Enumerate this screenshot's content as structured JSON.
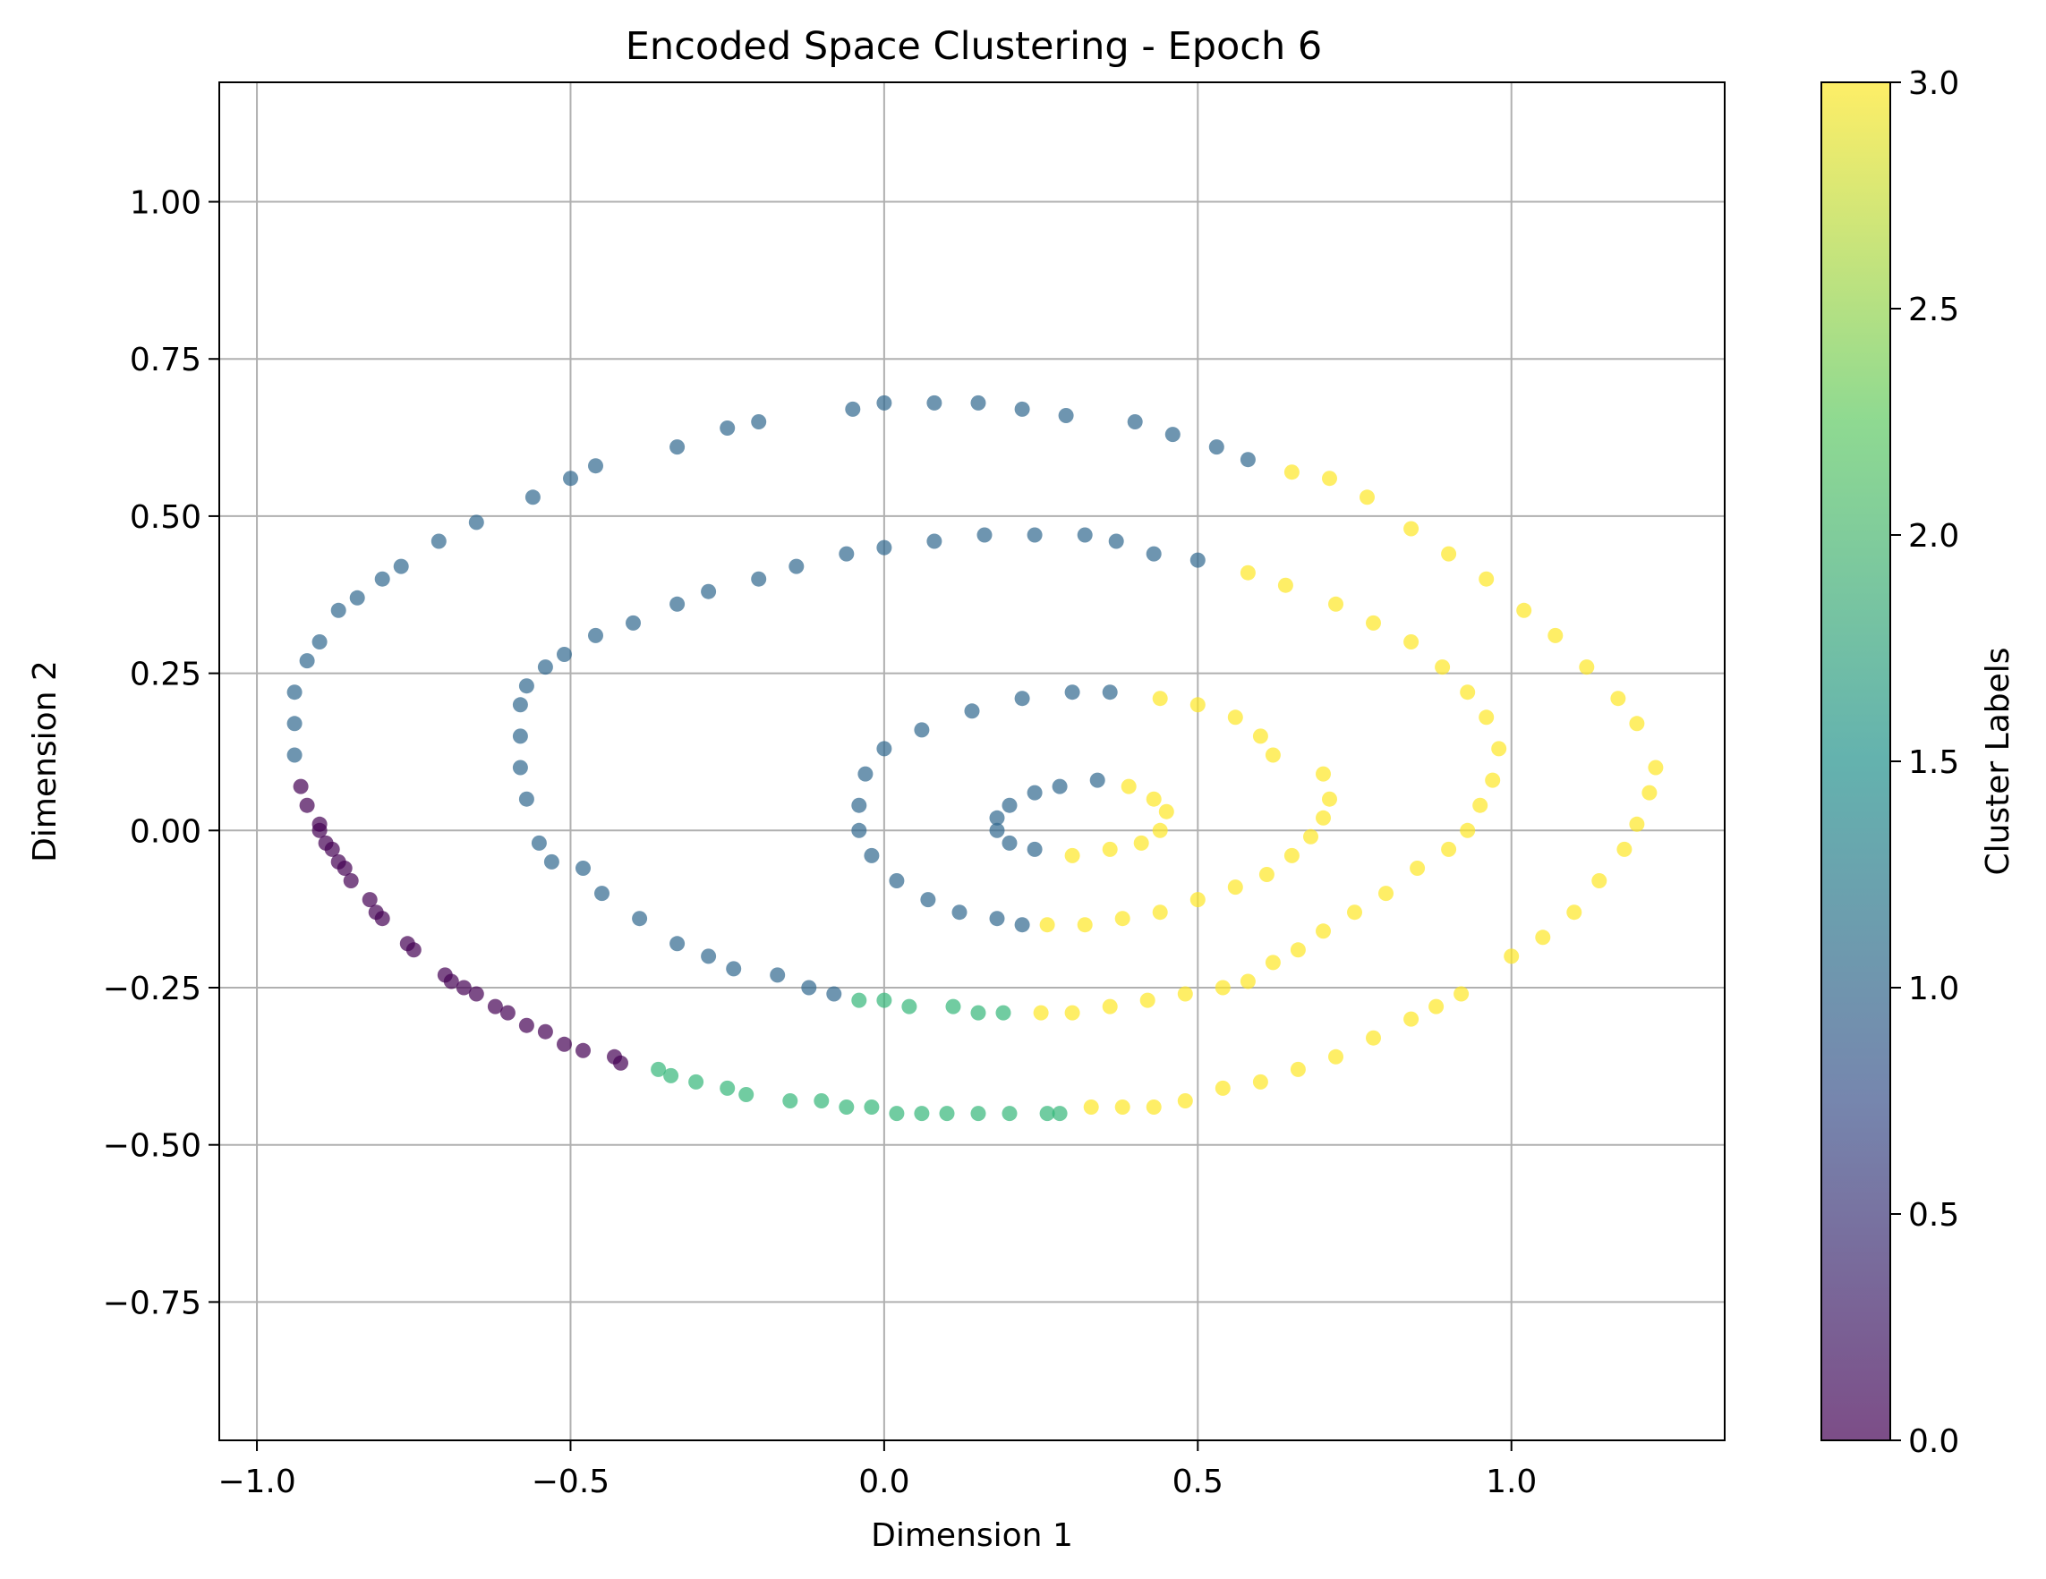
{
  "chart_data": {
    "type": "scatter",
    "title": "Encoded Space Clustering - Epoch 6",
    "xlabel": "Dimension 1",
    "ylabel": "Dimension 2",
    "xlim": [
      -1.06,
      1.34
    ],
    "ylim": [
      -0.97,
      1.19
    ],
    "xticks": [
      -1.0,
      -0.5,
      0.0,
      0.5,
      1.0
    ],
    "xtick_labels": [
      "−1.0",
      "−0.5",
      "0.0",
      "0.5",
      "1.0"
    ],
    "yticks": [
      -0.75,
      -0.5,
      -0.25,
      0.0,
      0.25,
      0.5,
      0.75,
      1.0
    ],
    "ytick_labels": [
      "−0.75",
      "−0.50",
      "−0.25",
      "0.00",
      "0.25",
      "0.50",
      "0.75",
      "1.00"
    ],
    "grid": true,
    "colorbar": {
      "label": "Cluster Labels",
      "range": [
        0.0,
        3.0
      ],
      "ticks": [
        0.0,
        0.5,
        1.0,
        1.5,
        2.0,
        2.5,
        3.0
      ],
      "tick_labels": [
        "0.0",
        "0.5",
        "1.0",
        "1.5",
        "2.0",
        "2.5",
        "3.0"
      ],
      "colormap": "viridis",
      "colormap_stops": [
        "#440154",
        "#3b528b",
        "#21918c",
        "#5ec962",
        "#fde725"
      ]
    },
    "cluster_colors": {
      "0": "#440154",
      "1": "#31688e",
      "2": "#35b779",
      "3": "#fde725"
    },
    "point_alpha": 0.7,
    "points": [
      {
        "cluster": 1,
        "x": -0.94,
        "y": 0.22
      },
      {
        "cluster": 1,
        "x": -0.94,
        "y": 0.17
      },
      {
        "cluster": 1,
        "x": -0.94,
        "y": 0.12
      },
      {
        "cluster": 0,
        "x": -0.93,
        "y": 0.07
      },
      {
        "cluster": 0,
        "x": -0.92,
        "y": 0.04
      },
      {
        "cluster": 0,
        "x": -0.9,
        "y": 0.01
      },
      {
        "cluster": 0,
        "x": -0.9,
        "y": 0.0
      },
      {
        "cluster": 0,
        "x": -0.89,
        "y": -0.02
      },
      {
        "cluster": 0,
        "x": -0.88,
        "y": -0.03
      },
      {
        "cluster": 0,
        "x": -0.87,
        "y": -0.05
      },
      {
        "cluster": 0,
        "x": -0.86,
        "y": -0.06
      },
      {
        "cluster": 0,
        "x": -0.85,
        "y": -0.08
      },
      {
        "cluster": 0,
        "x": -0.82,
        "y": -0.11
      },
      {
        "cluster": 0,
        "x": -0.81,
        "y": -0.13
      },
      {
        "cluster": 0,
        "x": -0.8,
        "y": -0.14
      },
      {
        "cluster": 0,
        "x": -0.76,
        "y": -0.18
      },
      {
        "cluster": 0,
        "x": -0.75,
        "y": -0.19
      },
      {
        "cluster": 0,
        "x": -0.7,
        "y": -0.23
      },
      {
        "cluster": 0,
        "x": -0.69,
        "y": -0.24
      },
      {
        "cluster": 0,
        "x": -0.67,
        "y": -0.25
      },
      {
        "cluster": 0,
        "x": -0.65,
        "y": -0.26
      },
      {
        "cluster": 0,
        "x": -0.62,
        "y": -0.28
      },
      {
        "cluster": 0,
        "x": -0.6,
        "y": -0.29
      },
      {
        "cluster": 0,
        "x": -0.57,
        "y": -0.31
      },
      {
        "cluster": 0,
        "x": -0.54,
        "y": -0.32
      },
      {
        "cluster": 0,
        "x": -0.51,
        "y": -0.34
      },
      {
        "cluster": 0,
        "x": -0.48,
        "y": -0.35
      },
      {
        "cluster": 0,
        "x": -0.43,
        "y": -0.36
      },
      {
        "cluster": 0,
        "x": -0.42,
        "y": -0.37
      },
      {
        "cluster": 2,
        "x": -0.36,
        "y": -0.38
      },
      {
        "cluster": 2,
        "x": -0.34,
        "y": -0.39
      },
      {
        "cluster": 2,
        "x": -0.3,
        "y": -0.4
      },
      {
        "cluster": 2,
        "x": -0.25,
        "y": -0.41
      },
      {
        "cluster": 2,
        "x": -0.22,
        "y": -0.42
      },
      {
        "cluster": 2,
        "x": -0.15,
        "y": -0.43
      },
      {
        "cluster": 2,
        "x": -0.1,
        "y": -0.43
      },
      {
        "cluster": 2,
        "x": -0.06,
        "y": -0.44
      },
      {
        "cluster": 2,
        "x": -0.02,
        "y": -0.44
      },
      {
        "cluster": 2,
        "x": 0.02,
        "y": -0.45
      },
      {
        "cluster": 2,
        "x": 0.06,
        "y": -0.45
      },
      {
        "cluster": 2,
        "x": 0.1,
        "y": -0.45
      },
      {
        "cluster": 2,
        "x": 0.15,
        "y": -0.45
      },
      {
        "cluster": 2,
        "x": 0.2,
        "y": -0.45
      },
      {
        "cluster": 2,
        "x": 0.26,
        "y": -0.45
      },
      {
        "cluster": 2,
        "x": 0.28,
        "y": -0.45
      },
      {
        "cluster": 3,
        "x": 0.33,
        "y": -0.44
      },
      {
        "cluster": 3,
        "x": 0.38,
        "y": -0.44
      },
      {
        "cluster": 3,
        "x": 0.43,
        "y": -0.44
      },
      {
        "cluster": 3,
        "x": 0.48,
        "y": -0.43
      },
      {
        "cluster": 3,
        "x": 0.54,
        "y": -0.41
      },
      {
        "cluster": 3,
        "x": 0.6,
        "y": -0.4
      },
      {
        "cluster": 3,
        "x": 0.66,
        "y": -0.38
      },
      {
        "cluster": 3,
        "x": 0.72,
        "y": -0.36
      },
      {
        "cluster": 3,
        "x": 0.78,
        "y": -0.33
      },
      {
        "cluster": 3,
        "x": 0.84,
        "y": -0.3
      },
      {
        "cluster": 3,
        "x": 0.88,
        "y": -0.28
      },
      {
        "cluster": 3,
        "x": 0.92,
        "y": -0.26
      },
      {
        "cluster": 3,
        "x": 1.0,
        "y": -0.2
      },
      {
        "cluster": 3,
        "x": 1.05,
        "y": -0.17
      },
      {
        "cluster": 3,
        "x": 1.1,
        "y": -0.13
      },
      {
        "cluster": 3,
        "x": 1.14,
        "y": -0.08
      },
      {
        "cluster": 3,
        "x": 1.18,
        "y": -0.03
      },
      {
        "cluster": 3,
        "x": 1.2,
        "y": 0.01
      },
      {
        "cluster": 3,
        "x": 1.22,
        "y": 0.06
      },
      {
        "cluster": 3,
        "x": 1.23,
        "y": 0.1
      },
      {
        "cluster": 3,
        "x": 1.2,
        "y": 0.17
      },
      {
        "cluster": 3,
        "x": 1.17,
        "y": 0.21
      },
      {
        "cluster": 3,
        "x": 1.12,
        "y": 0.26
      },
      {
        "cluster": 3,
        "x": 1.07,
        "y": 0.31
      },
      {
        "cluster": 3,
        "x": 1.02,
        "y": 0.35
      },
      {
        "cluster": 3,
        "x": 0.96,
        "y": 0.4
      },
      {
        "cluster": 3,
        "x": 0.9,
        "y": 0.44
      },
      {
        "cluster": 3,
        "x": 0.84,
        "y": 0.48
      },
      {
        "cluster": 3,
        "x": 0.77,
        "y": 0.53
      },
      {
        "cluster": 3,
        "x": 0.71,
        "y": 0.56
      },
      {
        "cluster": 3,
        "x": 0.65,
        "y": 0.57
      },
      {
        "cluster": 1,
        "x": 0.58,
        "y": 0.59
      },
      {
        "cluster": 1,
        "x": 0.53,
        "y": 0.61
      },
      {
        "cluster": 1,
        "x": 0.46,
        "y": 0.63
      },
      {
        "cluster": 1,
        "x": 0.4,
        "y": 0.65
      },
      {
        "cluster": 1,
        "x": 0.29,
        "y": 0.66
      },
      {
        "cluster": 1,
        "x": 0.22,
        "y": 0.67
      },
      {
        "cluster": 1,
        "x": 0.15,
        "y": 0.68
      },
      {
        "cluster": 1,
        "x": 0.08,
        "y": 0.68
      },
      {
        "cluster": 1,
        "x": 0.0,
        "y": 0.68
      },
      {
        "cluster": 1,
        "x": -0.05,
        "y": 0.67
      },
      {
        "cluster": 1,
        "x": -0.2,
        "y": 0.65
      },
      {
        "cluster": 1,
        "x": -0.25,
        "y": 0.64
      },
      {
        "cluster": 1,
        "x": -0.33,
        "y": 0.61
      },
      {
        "cluster": 1,
        "x": -0.46,
        "y": 0.58
      },
      {
        "cluster": 1,
        "x": -0.5,
        "y": 0.56
      },
      {
        "cluster": 1,
        "x": -0.56,
        "y": 0.53
      },
      {
        "cluster": 1,
        "x": -0.65,
        "y": 0.49
      },
      {
        "cluster": 1,
        "x": -0.71,
        "y": 0.46
      },
      {
        "cluster": 1,
        "x": -0.77,
        "y": 0.42
      },
      {
        "cluster": 1,
        "x": -0.8,
        "y": 0.4
      },
      {
        "cluster": 1,
        "x": -0.84,
        "y": 0.37
      },
      {
        "cluster": 1,
        "x": -0.87,
        "y": 0.35
      },
      {
        "cluster": 1,
        "x": -0.9,
        "y": 0.3
      },
      {
        "cluster": 1,
        "x": -0.92,
        "y": 0.27
      },
      {
        "cluster": 1,
        "x": -0.58,
        "y": 0.2
      },
      {
        "cluster": 1,
        "x": -0.58,
        "y": 0.15
      },
      {
        "cluster": 1,
        "x": -0.58,
        "y": 0.1
      },
      {
        "cluster": 1,
        "x": -0.57,
        "y": 0.05
      },
      {
        "cluster": 1,
        "x": -0.55,
        "y": -0.02
      },
      {
        "cluster": 1,
        "x": -0.53,
        "y": -0.05
      },
      {
        "cluster": 1,
        "x": -0.48,
        "y": -0.06
      },
      {
        "cluster": 1,
        "x": -0.45,
        "y": -0.1
      },
      {
        "cluster": 1,
        "x": -0.39,
        "y": -0.14
      },
      {
        "cluster": 1,
        "x": -0.33,
        "y": -0.18
      },
      {
        "cluster": 1,
        "x": -0.28,
        "y": -0.2
      },
      {
        "cluster": 1,
        "x": -0.24,
        "y": -0.22
      },
      {
        "cluster": 1,
        "x": -0.17,
        "y": -0.23
      },
      {
        "cluster": 1,
        "x": -0.12,
        "y": -0.25
      },
      {
        "cluster": 1,
        "x": -0.08,
        "y": -0.26
      },
      {
        "cluster": 2,
        "x": -0.04,
        "y": -0.27
      },
      {
        "cluster": 2,
        "x": 0.0,
        "y": -0.27
      },
      {
        "cluster": 2,
        "x": 0.04,
        "y": -0.28
      },
      {
        "cluster": 2,
        "x": 0.11,
        "y": -0.28
      },
      {
        "cluster": 2,
        "x": 0.15,
        "y": -0.29
      },
      {
        "cluster": 2,
        "x": 0.19,
        "y": -0.29
      },
      {
        "cluster": 3,
        "x": 0.25,
        "y": -0.29
      },
      {
        "cluster": 3,
        "x": 0.3,
        "y": -0.29
      },
      {
        "cluster": 3,
        "x": 0.36,
        "y": -0.28
      },
      {
        "cluster": 3,
        "x": 0.42,
        "y": -0.27
      },
      {
        "cluster": 3,
        "x": 0.48,
        "y": -0.26
      },
      {
        "cluster": 3,
        "x": 0.54,
        "y": -0.25
      },
      {
        "cluster": 3,
        "x": 0.58,
        "y": -0.24
      },
      {
        "cluster": 3,
        "x": 0.62,
        "y": -0.21
      },
      {
        "cluster": 3,
        "x": 0.66,
        "y": -0.19
      },
      {
        "cluster": 3,
        "x": 0.7,
        "y": -0.16
      },
      {
        "cluster": 3,
        "x": 0.75,
        "y": -0.13
      },
      {
        "cluster": 3,
        "x": 0.8,
        "y": -0.1
      },
      {
        "cluster": 3,
        "x": 0.85,
        "y": -0.06
      },
      {
        "cluster": 3,
        "x": 0.9,
        "y": -0.03
      },
      {
        "cluster": 3,
        "x": 0.93,
        "y": 0.0
      },
      {
        "cluster": 3,
        "x": 0.95,
        "y": 0.04
      },
      {
        "cluster": 3,
        "x": 0.97,
        "y": 0.08
      },
      {
        "cluster": 3,
        "x": 0.98,
        "y": 0.13
      },
      {
        "cluster": 3,
        "x": 0.96,
        "y": 0.18
      },
      {
        "cluster": 3,
        "x": 0.93,
        "y": 0.22
      },
      {
        "cluster": 3,
        "x": 0.89,
        "y": 0.26
      },
      {
        "cluster": 3,
        "x": 0.84,
        "y": 0.3
      },
      {
        "cluster": 3,
        "x": 0.78,
        "y": 0.33
      },
      {
        "cluster": 3,
        "x": 0.72,
        "y": 0.36
      },
      {
        "cluster": 3,
        "x": 0.64,
        "y": 0.39
      },
      {
        "cluster": 3,
        "x": 0.58,
        "y": 0.41
      },
      {
        "cluster": 1,
        "x": 0.5,
        "y": 0.43
      },
      {
        "cluster": 1,
        "x": 0.43,
        "y": 0.44
      },
      {
        "cluster": 1,
        "x": 0.37,
        "y": 0.46
      },
      {
        "cluster": 1,
        "x": 0.32,
        "y": 0.47
      },
      {
        "cluster": 1,
        "x": 0.24,
        "y": 0.47
      },
      {
        "cluster": 1,
        "x": 0.16,
        "y": 0.47
      },
      {
        "cluster": 1,
        "x": 0.08,
        "y": 0.46
      },
      {
        "cluster": 1,
        "x": 0.0,
        "y": 0.45
      },
      {
        "cluster": 1,
        "x": -0.06,
        "y": 0.44
      },
      {
        "cluster": 1,
        "x": -0.14,
        "y": 0.42
      },
      {
        "cluster": 1,
        "x": -0.2,
        "y": 0.4
      },
      {
        "cluster": 1,
        "x": -0.28,
        "y": 0.38
      },
      {
        "cluster": 1,
        "x": -0.33,
        "y": 0.36
      },
      {
        "cluster": 1,
        "x": -0.4,
        "y": 0.33
      },
      {
        "cluster": 1,
        "x": -0.46,
        "y": 0.31
      },
      {
        "cluster": 1,
        "x": -0.51,
        "y": 0.28
      },
      {
        "cluster": 1,
        "x": -0.54,
        "y": 0.26
      },
      {
        "cluster": 1,
        "x": -0.57,
        "y": 0.23
      },
      {
        "cluster": 3,
        "x": 0.62,
        "y": 0.12
      },
      {
        "cluster": 3,
        "x": 0.6,
        "y": 0.15
      },
      {
        "cluster": 3,
        "x": 0.56,
        "y": 0.18
      },
      {
        "cluster": 3,
        "x": 0.5,
        "y": 0.2
      },
      {
        "cluster": 3,
        "x": 0.44,
        "y": 0.21
      },
      {
        "cluster": 1,
        "x": 0.36,
        "y": 0.22
      },
      {
        "cluster": 1,
        "x": 0.3,
        "y": 0.22
      },
      {
        "cluster": 1,
        "x": 0.22,
        "y": 0.21
      },
      {
        "cluster": 1,
        "x": 0.14,
        "y": 0.19
      },
      {
        "cluster": 1,
        "x": 0.06,
        "y": 0.16
      },
      {
        "cluster": 1,
        "x": 0.0,
        "y": 0.13
      },
      {
        "cluster": 1,
        "x": -0.03,
        "y": 0.09
      },
      {
        "cluster": 1,
        "x": -0.04,
        "y": 0.04
      },
      {
        "cluster": 1,
        "x": -0.04,
        "y": 0.0
      },
      {
        "cluster": 1,
        "x": -0.02,
        "y": -0.04
      },
      {
        "cluster": 1,
        "x": 0.02,
        "y": -0.08
      },
      {
        "cluster": 1,
        "x": 0.07,
        "y": -0.11
      },
      {
        "cluster": 1,
        "x": 0.12,
        "y": -0.13
      },
      {
        "cluster": 1,
        "x": 0.18,
        "y": -0.14
      },
      {
        "cluster": 1,
        "x": 0.22,
        "y": -0.15
      },
      {
        "cluster": 3,
        "x": 0.26,
        "y": -0.15
      },
      {
        "cluster": 3,
        "x": 0.32,
        "y": -0.15
      },
      {
        "cluster": 3,
        "x": 0.38,
        "y": -0.14
      },
      {
        "cluster": 3,
        "x": 0.44,
        "y": -0.13
      },
      {
        "cluster": 3,
        "x": 0.5,
        "y": -0.11
      },
      {
        "cluster": 3,
        "x": 0.56,
        "y": -0.09
      },
      {
        "cluster": 3,
        "x": 0.61,
        "y": -0.07
      },
      {
        "cluster": 3,
        "x": 0.65,
        "y": -0.04
      },
      {
        "cluster": 3,
        "x": 0.68,
        "y": -0.01
      },
      {
        "cluster": 3,
        "x": 0.7,
        "y": 0.02
      },
      {
        "cluster": 3,
        "x": 0.71,
        "y": 0.05
      },
      {
        "cluster": 3,
        "x": 0.7,
        "y": 0.09
      },
      {
        "cluster": 1,
        "x": 0.34,
        "y": 0.08
      },
      {
        "cluster": 1,
        "x": 0.28,
        "y": 0.07
      },
      {
        "cluster": 1,
        "x": 0.24,
        "y": 0.06
      },
      {
        "cluster": 1,
        "x": 0.2,
        "y": 0.04
      },
      {
        "cluster": 1,
        "x": 0.18,
        "y": 0.02
      },
      {
        "cluster": 1,
        "x": 0.18,
        "y": 0.0
      },
      {
        "cluster": 1,
        "x": 0.2,
        "y": -0.02
      },
      {
        "cluster": 1,
        "x": 0.24,
        "y": -0.03
      },
      {
        "cluster": 3,
        "x": 0.3,
        "y": -0.04
      },
      {
        "cluster": 3,
        "x": 0.36,
        "y": -0.03
      },
      {
        "cluster": 3,
        "x": 0.41,
        "y": -0.02
      },
      {
        "cluster": 3,
        "x": 0.44,
        "y": 0.0
      },
      {
        "cluster": 3,
        "x": 0.45,
        "y": 0.03
      },
      {
        "cluster": 3,
        "x": 0.43,
        "y": 0.05
      },
      {
        "cluster": 3,
        "x": 0.39,
        "y": 0.07
      }
    ]
  }
}
